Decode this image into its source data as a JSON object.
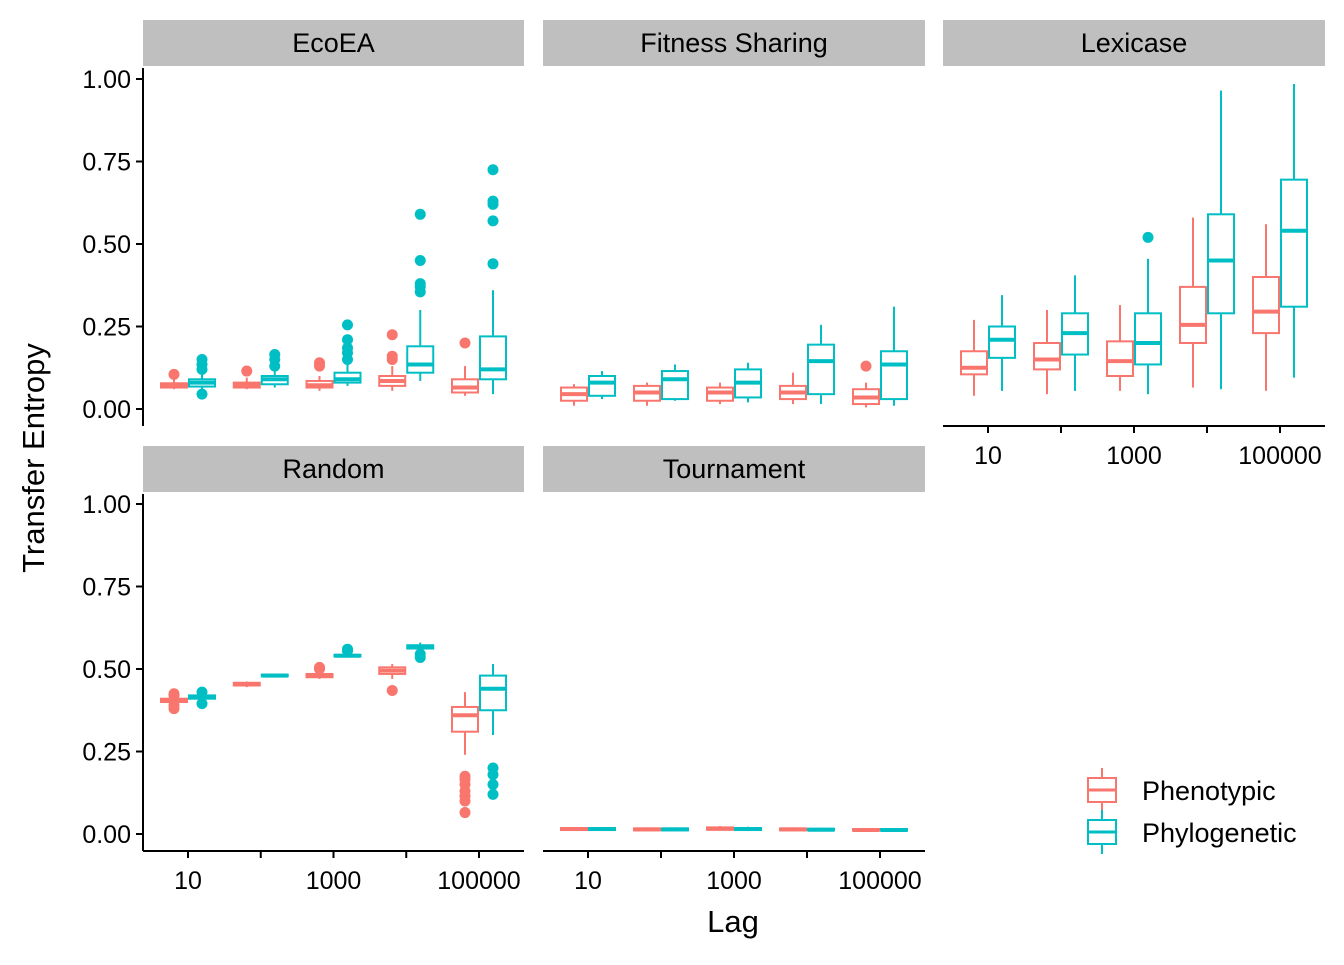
{
  "chart_data": {
    "type": "box",
    "xlabel": "Lag",
    "ylabel": "Transfer Entropy",
    "ylim": [
      0,
      1
    ],
    "y_ticks": [
      "0.00",
      "0.25",
      "0.50",
      "0.75",
      "1.00"
    ],
    "x_scale": "log10",
    "x_ticks": [
      "10",
      "1000",
      "100000"
    ],
    "lags": [
      10,
      100,
      1000,
      10000,
      100000
    ],
    "legend": {
      "position": "bottom-right",
      "entries": [
        {
          "name": "Phenotypic",
          "color": "#F8766D"
        },
        {
          "name": "Phylogenetic",
          "color": "#00BFC4"
        }
      ]
    },
    "facets": [
      {
        "name": "EcoEA",
        "series": [
          {
            "name": "Phenotypic",
            "boxes": [
              {
                "lag": 10,
                "lo": 0.06,
                "q1": 0.065,
                "med": 0.07,
                "q3": 0.078,
                "hi": 0.09,
                "outliers": [
                  0.105
                ]
              },
              {
                "lag": 100,
                "lo": 0.06,
                "q1": 0.065,
                "med": 0.072,
                "q3": 0.08,
                "hi": 0.095,
                "outliers": [
                  0.115
                ]
              },
              {
                "lag": 1000,
                "lo": 0.055,
                "q1": 0.065,
                "med": 0.072,
                "q3": 0.085,
                "hi": 0.1,
                "outliers": [
                  0.13,
                  0.14
                ]
              },
              {
                "lag": 10000,
                "lo": 0.055,
                "q1": 0.07,
                "med": 0.085,
                "q3": 0.1,
                "hi": 0.13,
                "outliers": [
                  0.15,
                  0.16,
                  0.225
                ]
              },
              {
                "lag": 100000,
                "lo": 0.04,
                "q1": 0.05,
                "med": 0.065,
                "q3": 0.09,
                "hi": 0.13,
                "outliers": [
                  0.2
                ]
              }
            ]
          },
          {
            "name": "Phylogenetic",
            "boxes": [
              {
                "lag": 10,
                "lo": 0.055,
                "q1": 0.068,
                "med": 0.08,
                "q3": 0.09,
                "hi": 0.11,
                "outliers": [
                  0.045,
                  0.12,
                  0.135,
                  0.15
                ]
              },
              {
                "lag": 100,
                "lo": 0.065,
                "q1": 0.075,
                "med": 0.09,
                "q3": 0.1,
                "hi": 0.12,
                "outliers": [
                  0.13,
                  0.15,
                  0.165
                ]
              },
              {
                "lag": 1000,
                "lo": 0.07,
                "q1": 0.08,
                "med": 0.09,
                "q3": 0.11,
                "hi": 0.14,
                "outliers": [
                  0.15,
                  0.17,
                  0.185,
                  0.21,
                  0.255
                ]
              },
              {
                "lag": 10000,
                "lo": 0.085,
                "q1": 0.11,
                "med": 0.135,
                "q3": 0.19,
                "hi": 0.3,
                "outliers": [
                  0.355,
                  0.37,
                  0.38,
                  0.45,
                  0.59
                ]
              },
              {
                "lag": 100000,
                "lo": 0.045,
                "q1": 0.09,
                "med": 0.12,
                "q3": 0.22,
                "hi": 0.36,
                "outliers": [
                  0.44,
                  0.57,
                  0.62,
                  0.63,
                  0.725
                ]
              }
            ]
          }
        ]
      },
      {
        "name": "Fitness Sharing",
        "series": [
          {
            "name": "Phenotypic",
            "boxes": [
              {
                "lag": 10,
                "lo": 0.01,
                "q1": 0.025,
                "med": 0.045,
                "q3": 0.065,
                "hi": 0.075,
                "outliers": []
              },
              {
                "lag": 100,
                "lo": 0.01,
                "q1": 0.025,
                "med": 0.05,
                "q3": 0.07,
                "hi": 0.08,
                "outliers": []
              },
              {
                "lag": 1000,
                "lo": 0.015,
                "q1": 0.025,
                "med": 0.05,
                "q3": 0.065,
                "hi": 0.08,
                "outliers": []
              },
              {
                "lag": 10000,
                "lo": 0.015,
                "q1": 0.03,
                "med": 0.05,
                "q3": 0.07,
                "hi": 0.11,
                "outliers": []
              },
              {
                "lag": 100000,
                "lo": 0.005,
                "q1": 0.015,
                "med": 0.035,
                "q3": 0.06,
                "hi": 0.08,
                "outliers": [
                  0.13
                ]
              }
            ]
          },
          {
            "name": "Phylogenetic",
            "boxes": [
              {
                "lag": 10,
                "lo": 0.03,
                "q1": 0.04,
                "med": 0.08,
                "q3": 0.1,
                "hi": 0.115,
                "outliers": []
              },
              {
                "lag": 100,
                "lo": 0.025,
                "q1": 0.03,
                "med": 0.09,
                "q3": 0.115,
                "hi": 0.135,
                "outliers": []
              },
              {
                "lag": 1000,
                "lo": 0.02,
                "q1": 0.035,
                "med": 0.08,
                "q3": 0.12,
                "hi": 0.14,
                "outliers": []
              },
              {
                "lag": 10000,
                "lo": 0.015,
                "q1": 0.045,
                "med": 0.145,
                "q3": 0.195,
                "hi": 0.255,
                "outliers": []
              },
              {
                "lag": 100000,
                "lo": 0.01,
                "q1": 0.03,
                "med": 0.135,
                "q3": 0.175,
                "hi": 0.31,
                "outliers": []
              }
            ]
          }
        ]
      },
      {
        "name": "Lexicase",
        "series": [
          {
            "name": "Phenotypic",
            "boxes": [
              {
                "lag": 10,
                "lo": 0.04,
                "q1": 0.105,
                "med": 0.125,
                "q3": 0.175,
                "hi": 0.27,
                "outliers": []
              },
              {
                "lag": 100,
                "lo": 0.045,
                "q1": 0.12,
                "med": 0.15,
                "q3": 0.2,
                "hi": 0.3,
                "outliers": []
              },
              {
                "lag": 1000,
                "lo": 0.055,
                "q1": 0.1,
                "med": 0.145,
                "q3": 0.205,
                "hi": 0.315,
                "outliers": []
              },
              {
                "lag": 10000,
                "lo": 0.065,
                "q1": 0.2,
                "med": 0.255,
                "q3": 0.37,
                "hi": 0.58,
                "outliers": []
              },
              {
                "lag": 100000,
                "lo": 0.055,
                "q1": 0.23,
                "med": 0.295,
                "q3": 0.4,
                "hi": 0.56,
                "outliers": []
              }
            ]
          },
          {
            "name": "Phylogenetic",
            "boxes": [
              {
                "lag": 10,
                "lo": 0.055,
                "q1": 0.155,
                "med": 0.21,
                "q3": 0.25,
                "hi": 0.345,
                "outliers": []
              },
              {
                "lag": 100,
                "lo": 0.055,
                "q1": 0.165,
                "med": 0.23,
                "q3": 0.29,
                "hi": 0.405,
                "outliers": []
              },
              {
                "lag": 1000,
                "lo": 0.045,
                "q1": 0.135,
                "med": 0.2,
                "q3": 0.29,
                "hi": 0.455,
                "outliers": [
                  0.52
                ]
              },
              {
                "lag": 10000,
                "lo": 0.06,
                "q1": 0.29,
                "med": 0.45,
                "q3": 0.59,
                "hi": 0.965,
                "outliers": []
              },
              {
                "lag": 100000,
                "lo": 0.095,
                "q1": 0.31,
                "med": 0.54,
                "q3": 0.695,
                "hi": 0.985,
                "outliers": []
              }
            ]
          }
        ]
      },
      {
        "name": "Random",
        "series": [
          {
            "name": "Phenotypic",
            "boxes": [
              {
                "lag": 10,
                "lo": 0.395,
                "q1": 0.4,
                "med": 0.405,
                "q3": 0.41,
                "hi": 0.415,
                "outliers": [
                  0.38,
                  0.39,
                  0.42,
                  0.425
                ]
              },
              {
                "lag": 100,
                "lo": 0.445,
                "q1": 0.45,
                "med": 0.455,
                "q3": 0.458,
                "hi": 0.462,
                "outliers": []
              },
              {
                "lag": 1000,
                "lo": 0.47,
                "q1": 0.475,
                "med": 0.48,
                "q3": 0.485,
                "hi": 0.49,
                "outliers": [
                  0.5,
                  0.505
                ]
              },
              {
                "lag": 10000,
                "lo": 0.47,
                "q1": 0.485,
                "med": 0.495,
                "q3": 0.505,
                "hi": 0.515,
                "outliers": [
                  0.435
                ]
              },
              {
                "lag": 100000,
                "lo": 0.24,
                "q1": 0.31,
                "med": 0.36,
                "q3": 0.385,
                "hi": 0.43,
                "outliers": [
                  0.065,
                  0.1,
                  0.115,
                  0.13,
                  0.15,
                  0.165,
                  0.175
                ]
              }
            ]
          },
          {
            "name": "Phylogenetic",
            "boxes": [
              {
                "lag": 10,
                "lo": 0.4,
                "q1": 0.41,
                "med": 0.415,
                "q3": 0.42,
                "hi": 0.425,
                "outliers": [
                  0.395,
                  0.43
                ]
              },
              {
                "lag": 100,
                "lo": 0.475,
                "q1": 0.478,
                "med": 0.48,
                "q3": 0.483,
                "hi": 0.486,
                "outliers": []
              },
              {
                "lag": 1000,
                "lo": 0.535,
                "q1": 0.538,
                "med": 0.54,
                "q3": 0.543,
                "hi": 0.55,
                "outliers": [
                  0.555,
                  0.56
                ]
              },
              {
                "lag": 10000,
                "lo": 0.555,
                "q1": 0.562,
                "med": 0.567,
                "q3": 0.572,
                "hi": 0.58,
                "outliers": [
                  0.535,
                  0.545
                ]
              },
              {
                "lag": 100000,
                "lo": 0.3,
                "q1": 0.375,
                "med": 0.44,
                "q3": 0.48,
                "hi": 0.515,
                "outliers": [
                  0.12,
                  0.15,
                  0.18,
                  0.2
                ]
              }
            ]
          }
        ]
      },
      {
        "name": "Tournament",
        "series": [
          {
            "name": "Phenotypic",
            "boxes": [
              {
                "lag": 10,
                "lo": 0.01,
                "q1": 0.012,
                "med": 0.015,
                "q3": 0.018,
                "hi": 0.021,
                "outliers": []
              },
              {
                "lag": 100,
                "lo": 0.008,
                "q1": 0.011,
                "med": 0.014,
                "q3": 0.017,
                "hi": 0.02,
                "outliers": []
              },
              {
                "lag": 1000,
                "lo": 0.01,
                "q1": 0.013,
                "med": 0.016,
                "q3": 0.02,
                "hi": 0.024,
                "outliers": []
              },
              {
                "lag": 10000,
                "lo": 0.008,
                "q1": 0.011,
                "med": 0.014,
                "q3": 0.017,
                "hi": 0.02,
                "outliers": []
              },
              {
                "lag": 100000,
                "lo": 0.007,
                "q1": 0.01,
                "med": 0.012,
                "q3": 0.015,
                "hi": 0.017,
                "outliers": []
              }
            ]
          },
          {
            "name": "Phylogenetic",
            "boxes": [
              {
                "lag": 10,
                "lo": 0.009,
                "q1": 0.012,
                "med": 0.015,
                "q3": 0.018,
                "hi": 0.021,
                "outliers": []
              },
              {
                "lag": 100,
                "lo": 0.008,
                "q1": 0.011,
                "med": 0.014,
                "q3": 0.017,
                "hi": 0.02,
                "outliers": []
              },
              {
                "lag": 1000,
                "lo": 0.01,
                "q1": 0.012,
                "med": 0.015,
                "q3": 0.018,
                "hi": 0.022,
                "outliers": []
              },
              {
                "lag": 10000,
                "lo": 0.008,
                "q1": 0.011,
                "med": 0.013,
                "q3": 0.016,
                "hi": 0.019,
                "outliers": []
              },
              {
                "lag": 100000,
                "lo": 0.007,
                "q1": 0.01,
                "med": 0.012,
                "q3": 0.015,
                "hi": 0.017,
                "outliers": []
              }
            ]
          }
        ]
      }
    ]
  }
}
